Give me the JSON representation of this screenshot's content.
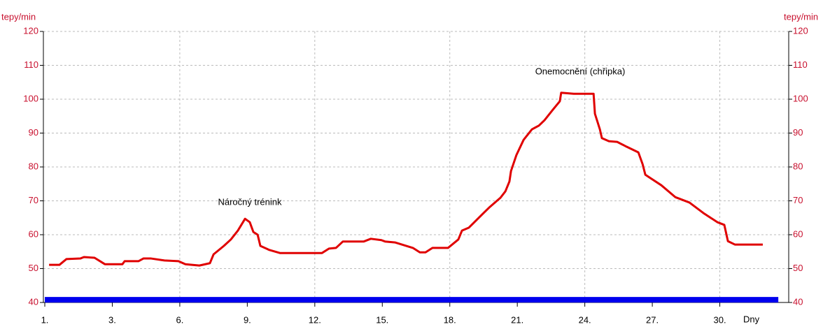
{
  "chart_data": {
    "type": "line",
    "y_label": "tepy/min",
    "y2_label": "tepy/min",
    "x_label": "Dny",
    "annotations": [
      "Náročný trénink",
      "Onemocnění (chřipka)"
    ],
    "xlim": [
      0,
      33
    ],
    "xticks": [
      {
        "value": 0,
        "label": "1."
      },
      {
        "value": 3,
        "label": "3."
      },
      {
        "value": 6,
        "label": "6."
      },
      {
        "value": 9,
        "label": "9."
      },
      {
        "value": 12,
        "label": "12."
      },
      {
        "value": 15,
        "label": "15."
      },
      {
        "value": 18,
        "label": "18."
      },
      {
        "value": 21,
        "label": "21."
      },
      {
        "value": 24,
        "label": "24."
      },
      {
        "value": 27,
        "label": "27."
      },
      {
        "value": 30,
        "label": "30."
      }
    ],
    "ylim": [
      40,
      120
    ],
    "yticks": [
      40,
      50,
      60,
      70,
      80,
      90,
      100,
      110,
      120
    ],
    "y2lim": [
      40,
      120
    ],
    "y2ticks": [
      40,
      50,
      60,
      70,
      80,
      90,
      100,
      110,
      120
    ],
    "grid": true,
    "series": [
      {
        "color": "#e00000",
        "x": [
          0.19,
          0.65,
          0.96,
          1.59,
          1.74,
          2.21,
          2.67,
          3.45,
          3.55,
          4.17,
          4.39,
          4.7,
          5.32,
          5.94,
          6.25,
          6.87,
          7.34,
          7.5,
          7.96,
          8.27,
          8.58,
          8.9,
          9.11,
          9.27,
          9.46,
          9.58,
          9.98,
          10.45,
          12.32,
          12.63,
          12.94,
          13.25,
          14.18,
          14.49,
          14.96,
          15.12,
          15.58,
          16.36,
          16.67,
          16.92,
          17.23,
          17.92,
          18.38,
          18.54,
          18.85,
          19.47,
          19.78,
          20.25,
          20.47,
          20.65,
          20.72,
          20.96,
          21.28,
          21.65,
          21.96,
          22.21,
          22.58,
          22.89,
          22.95,
          23.51,
          24.39,
          24.45,
          24.67,
          24.76,
          25.07,
          25.44,
          25.85,
          26.38,
          26.57,
          26.69,
          27.4,
          28.02,
          28.65,
          29.27,
          29.89,
          30.2,
          30.36,
          30.67,
          31.91
        ],
        "values": [
          51.1,
          51.1,
          52.8,
          53,
          53.4,
          53.2,
          51.3,
          51.3,
          52.2,
          52.2,
          53,
          53,
          52.4,
          52.2,
          51.3,
          50.9,
          51.6,
          54.2,
          56.7,
          58.6,
          61.2,
          64.7,
          63.7,
          60.8,
          60,
          56.7,
          55.5,
          54.6,
          54.6,
          55.9,
          56.1,
          58,
          58,
          58.8,
          58.4,
          58,
          57.7,
          56.1,
          54.8,
          54.8,
          56.1,
          56.1,
          58.6,
          61.2,
          62.1,
          66.2,
          68.2,
          70.9,
          72.8,
          75.7,
          78.8,
          83.5,
          88,
          91.1,
          92.2,
          93.8,
          96.9,
          99.4,
          101.9,
          101.6,
          101.6,
          95.7,
          91.1,
          88.5,
          87.6,
          87.4,
          86,
          84.3,
          80.8,
          77.7,
          74.6,
          71.1,
          69.5,
          66.4,
          63.7,
          62.9,
          58.1,
          57.1,
          57.1
        ]
      },
      {
        "color": "#0000ee",
        "x": [
          0,
          32.6
        ],
        "values": [
          40.8,
          40.8
        ]
      }
    ]
  }
}
